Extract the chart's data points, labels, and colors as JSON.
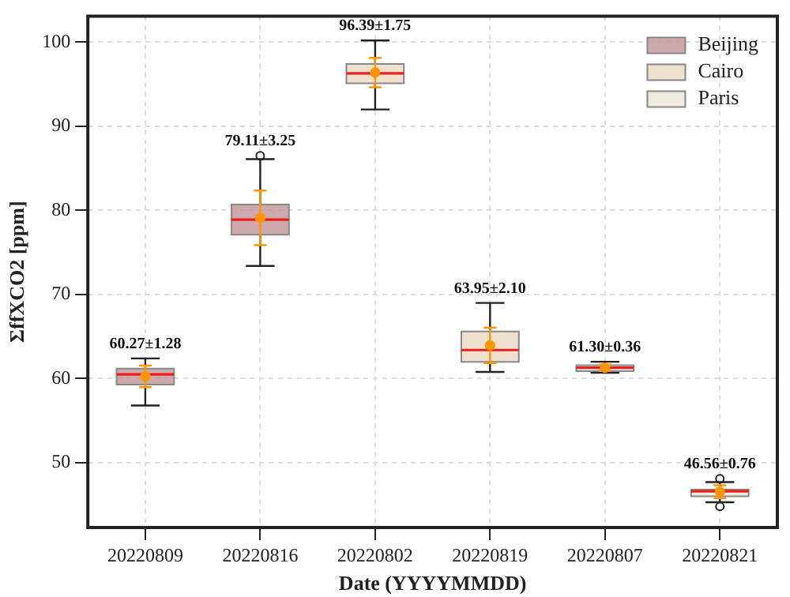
{
  "chart_data": {
    "type": "box",
    "xlabel": "Date (YYYYMMDD)",
    "ylabel": "ΣffXCO2 [ppm]",
    "categories": [
      "20220809",
      "20220816",
      "20220802",
      "20220819",
      "20220807",
      "20220821"
    ],
    "ylim": [
      42.3,
      103.1
    ],
    "yticks": [
      50,
      60,
      70,
      80,
      90,
      100
    ],
    "grid": true,
    "legend": "top right",
    "series": [
      {
        "name": "Beijing",
        "color": "#c49a9f",
        "boxes": [
          {
            "low": 56.8,
            "q1": 59.3,
            "median": 60.5,
            "q3": 61.2,
            "high": 62.4
          },
          {
            "low": 73.4,
            "q1": 77.1,
            "median": 78.9,
            "q3": 80.7,
            "high": 86.1,
            "outliers": [
              86.5
            ]
          },
          null,
          null,
          null,
          null
        ]
      },
      {
        "name": "Cairo",
        "color": "#ecdcc6",
        "boxes": [
          null,
          null,
          {
            "low": 92.0,
            "q1": 95.1,
            "median": 96.3,
            "q3": 97.4,
            "high": 100.2
          },
          {
            "low": 60.8,
            "q1": 62.0,
            "median": 63.4,
            "q3": 65.6,
            "high": 69.0
          },
          null,
          null
        ]
      },
      {
        "name": "Paris",
        "color": "#ece7d9",
        "boxes": [
          null,
          null,
          null,
          null,
          {
            "low": 60.7,
            "q1": 60.9,
            "median": 61.3,
            "q3": 61.6,
            "high": 62.0
          },
          {
            "low": 45.3,
            "q1": 46.0,
            "median": 46.6,
            "q3": 46.8,
            "high": 47.7,
            "outliers": [
              48.1,
              44.8
            ]
          }
        ]
      },
      {
        "type": "scatter",
        "color": "#ff9500",
        "x": [
          "20220809",
          "20220816",
          "20220802",
          "20220819",
          "20220807",
          "20220821"
        ],
        "values": [
          60.27,
          79.11,
          96.39,
          63.95,
          61.3,
          46.56
        ],
        "errors": [
          1.28,
          3.25,
          1.75,
          2.1,
          0.36,
          0.76
        ],
        "marker": "circle"
      }
    ],
    "annotations": [
      {
        "text": "60.27±1.28",
        "x": "20220809",
        "y": 62.4
      },
      {
        "text": "79.11±3.25",
        "x": "20220816",
        "y": 86.5
      },
      {
        "text": "96.39±1.75",
        "x": "20220802",
        "y": 100.2
      },
      {
        "text": "63.95±2.10",
        "x": "20220819",
        "y": 69.0
      },
      {
        "text": "61.30±0.36",
        "x": "20220807",
        "y": 62.0
      },
      {
        "text": "46.56±0.76",
        "x": "20220821",
        "y": 48.1
      }
    ]
  }
}
